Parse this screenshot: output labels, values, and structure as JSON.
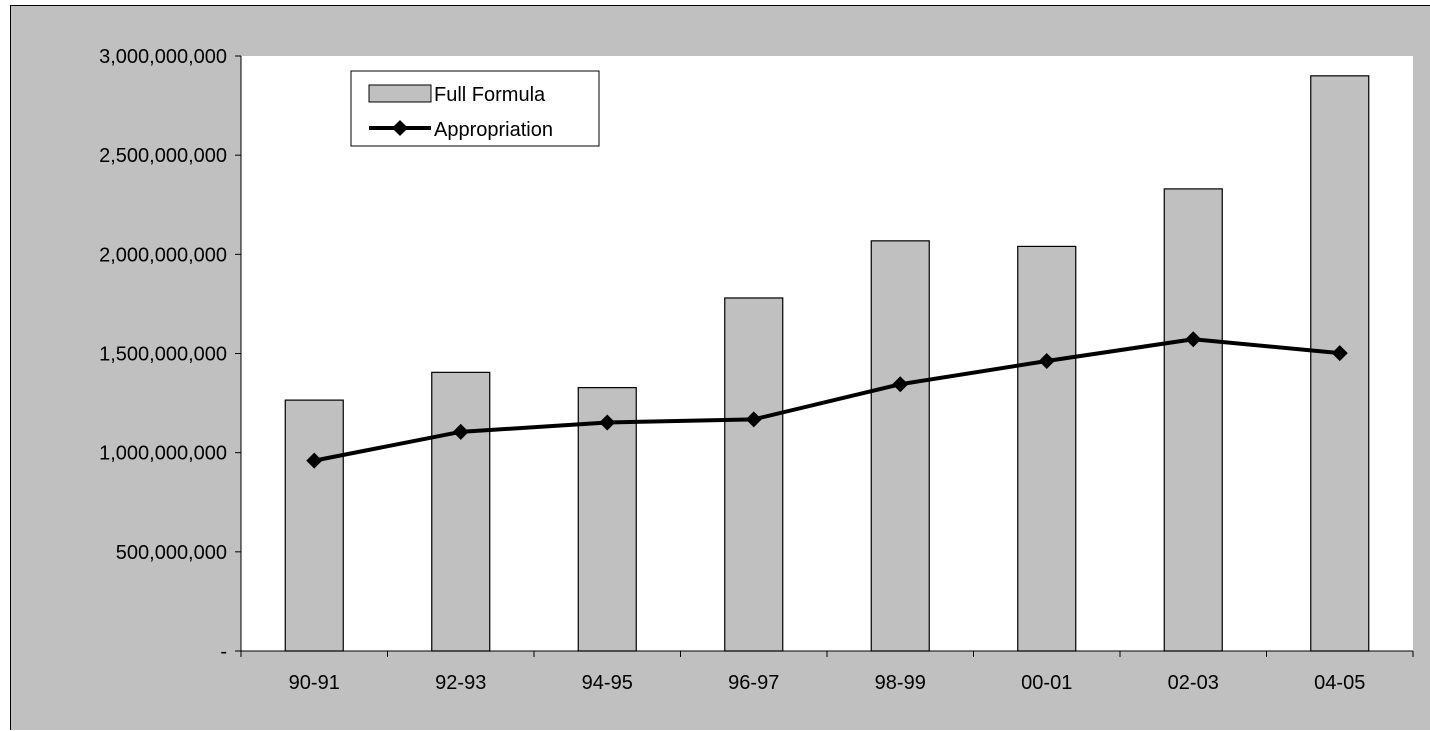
{
  "chart_data": {
    "type": "bar",
    "categories": [
      "90-91",
      "92-93",
      "94-95",
      "96-97",
      "98-99",
      "00-01",
      "02-03",
      "04-05"
    ],
    "series": [
      {
        "name": "Full Formula",
        "type": "bar",
        "values": [
          1265000000,
          1405000000,
          1328000000,
          1780000000,
          2068000000,
          2040000000,
          2330000000,
          2900000000
        ]
      },
      {
        "name": "Appropriation",
        "type": "line",
        "marker": "diamond",
        "values": [
          960000000,
          1105000000,
          1152000000,
          1168000000,
          1345000000,
          1462000000,
          1572000000,
          1502000000
        ]
      }
    ],
    "yticks": [
      {
        "value": 0,
        "label": "-"
      },
      {
        "value": 500000000,
        "label": "500,000,000"
      },
      {
        "value": 1000000000,
        "label": "1,000,000,000"
      },
      {
        "value": 1500000000,
        "label": "1,500,000,000"
      },
      {
        "value": 2000000000,
        "label": "2,000,000,000"
      },
      {
        "value": 2500000000,
        "label": "2,500,000,000"
      },
      {
        "value": 3000000000,
        "label": "3,000,000,000"
      }
    ],
    "ylim": [
      0,
      3000000000
    ],
    "title": "",
    "xlabel": "",
    "ylabel": "",
    "grid": false,
    "legend_position": "top-left",
    "colors": {
      "background": "#c0c0c0",
      "plot_area": "#ffffff",
      "bar_fill": "#c0c0c0",
      "bar_stroke": "#000000",
      "line": "#000000"
    }
  }
}
